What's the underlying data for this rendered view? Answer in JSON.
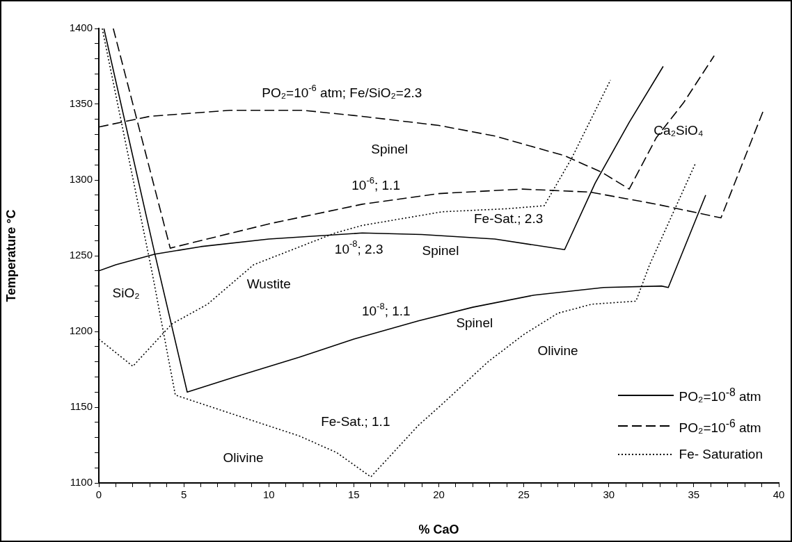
{
  "chart_data": {
    "type": "line",
    "xlabel": "% CaO",
    "ylabel": "Temperature °C",
    "xlim": [
      0,
      40
    ],
    "ylim": [
      1100,
      1400
    ],
    "xticks": [
      0,
      {
        "value": 1,
        "label": null
      },
      {
        "value": 2,
        "label": null
      },
      {
        "value": 3,
        "label": null
      },
      {
        "value": 4,
        "label": null
      },
      5,
      {
        "value": 6,
        "label": null
      },
      {
        "value": 7,
        "label": null
      },
      {
        "value": 8,
        "label": null
      },
      {
        "value": 9,
        "label": null
      },
      10,
      {
        "value": 11,
        "label": null
      },
      {
        "value": 12,
        "label": null
      },
      {
        "value": 13,
        "label": null
      },
      {
        "value": 14,
        "label": null
      },
      15,
      {
        "value": 16,
        "label": null
      },
      {
        "value": 17,
        "label": null
      },
      {
        "value": 18,
        "label": null
      },
      {
        "value": 19,
        "label": null
      },
      20,
      {
        "value": 21,
        "label": null
      },
      {
        "value": 22,
        "label": null
      },
      {
        "value": 23,
        "label": null
      },
      {
        "value": 24,
        "label": null
      },
      25,
      {
        "value": 26,
        "label": null
      },
      {
        "value": 27,
        "label": null
      },
      {
        "value": 28,
        "label": null
      },
      {
        "value": 29,
        "label": null
      },
      30,
      {
        "value": 31,
        "label": null
      },
      {
        "value": 32,
        "label": null
      },
      {
        "value": 33,
        "label": null
      },
      {
        "value": 34,
        "label": null
      },
      35,
      {
        "value": 36,
        "label": null
      },
      {
        "value": 37,
        "label": null
      },
      {
        "value": 38,
        "label": null
      },
      {
        "value": 39,
        "label": null
      },
      40
    ],
    "yticks": [
      1100,
      {
        "value": 1110,
        "label": null
      },
      {
        "value": 1120,
        "label": null
      },
      {
        "value": 1130,
        "label": null
      },
      {
        "value": 1140,
        "label": null
      },
      1150,
      {
        "value": 1160,
        "label": null
      },
      {
        "value": 1170,
        "label": null
      },
      {
        "value": 1180,
        "label": null
      },
      {
        "value": 1190,
        "label": null
      },
      1200,
      {
        "value": 1210,
        "label": null
      },
      {
        "value": 1220,
        "label": null
      },
      {
        "value": 1230,
        "label": null
      },
      {
        "value": 1240,
        "label": null
      },
      1250,
      {
        "value": 1260,
        "label": null
      },
      {
        "value": 1270,
        "label": null
      },
      {
        "value": 1280,
        "label": null
      },
      {
        "value": 1290,
        "label": null
      },
      1300,
      {
        "value": 1310,
        "label": null
      },
      {
        "value": 1320,
        "label": null
      },
      {
        "value": 1330,
        "label": null
      },
      {
        "value": 1340,
        "label": null
      },
      1350,
      {
        "value": 1360,
        "label": null
      },
      {
        "value": 1370,
        "label": null
      },
      {
        "value": 1380,
        "label": null
      },
      {
        "value": 1390,
        "label": null
      },
      1400
    ],
    "grid": false,
    "legend": "bottom right",
    "marker": "none",
    "series": [
      {
        "name": "PO₂=10$^{-8}$ atm",
        "color": "#000000",
        "line_style": "solid",
        "x": [
          0,
          1,
          3.3,
          6,
          10,
          15.5,
          19,
          23.3,
          27.4,
          29.2,
          31.2,
          33.2
        ],
        "values": [
          1240,
          1244,
          1251,
          1256,
          1261,
          1265,
          1264,
          1261,
          1254,
          1298,
          1338,
          1375
        ]
      },
      {
        "color": "#000000",
        "line_style": "solid",
        "x": [
          0.3,
          3.3,
          5.2,
          8,
          11.8,
          15,
          18.8,
          22,
          25.6,
          29.7,
          33.1,
          33.5,
          35.7
        ],
        "values": [
          1400,
          1251,
          1160,
          1170,
          1183,
          1195,
          1207,
          1216,
          1224,
          1229,
          1230,
          1229,
          1290
        ]
      },
      {
        "name": "PO₂=10$^{-6}$ atm",
        "color": "#000000",
        "line_style": "dashed",
        "x": [
          0,
          3,
          7.7,
          12,
          15.5,
          20,
          23.3,
          27.4,
          29.6,
          31.2,
          32.8,
          34.4,
          36.2
        ],
        "values": [
          1335,
          1342,
          1346,
          1346,
          1342,
          1336,
          1329,
          1316,
          1305,
          1294,
          1328,
          1351,
          1382
        ]
      },
      {
        "color": "#000000",
        "line_style": "dashed",
        "x": [
          0.85,
          4.2,
          6,
          10,
          15.5,
          20,
          24.9,
          28.9,
          32.8,
          36.6,
          39.1
        ],
        "values": [
          1400,
          1255,
          1260,
          1271,
          1284,
          1291,
          1294,
          1292,
          1284,
          1275,
          1346
        ]
      },
      {
        "name": "Fe- Saturation",
        "color": "#000000",
        "line_style": "dotted",
        "x": [
          0,
          2,
          4.3,
          6.4,
          9.1,
          13.9,
          15.5,
          20.2,
          24,
          26.2,
          27.8,
          30.1
        ],
        "values": [
          1195,
          1177,
          1205,
          1218,
          1244,
          1265,
          1270,
          1279,
          1281,
          1283,
          1314,
          1366
        ]
      },
      {
        "color": "#000000",
        "line_style": "dotted",
        "x": [
          0.2,
          3.1,
          4.5,
          8,
          11.8,
          14,
          16,
          18.8,
          20,
          22.9,
          25,
          27,
          29,
          31.6,
          32.4,
          35.1
        ],
        "values": [
          1400,
          1241,
          1158,
          1145,
          1131,
          1120,
          1104,
          1138,
          1150,
          1180,
          1198,
          1212,
          1218,
          1220,
          1244,
          1311
        ]
      }
    ],
    "annotations": [
      "PO₂=10$^{-6}$ atm; Fe/SiO₂=2.3",
      "Spinel",
      "10$^{-6}$; 1.1",
      "Fe-Sat.; 2.3",
      "10$^{-8}$; 2.3",
      "Spinel",
      "Ca₂SiO₄",
      "SiO₂",
      "Wustite",
      "10$^{-8}$; 1.1",
      "Spinel",
      "Olivine",
      "Fe-Sat.; 1.1",
      "Olivine"
    ]
  }
}
